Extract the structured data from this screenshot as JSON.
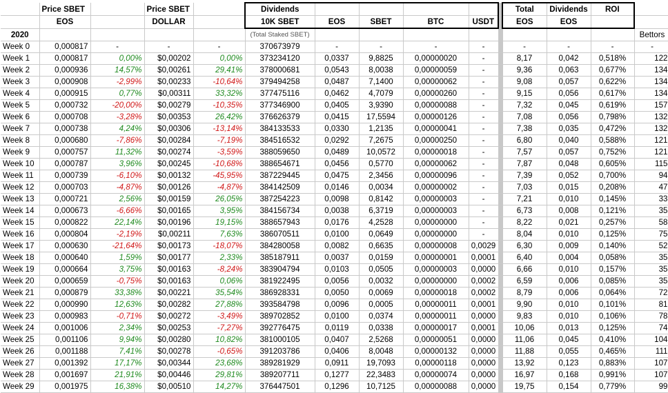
{
  "headers": {
    "price_sbet_eos": "Price SBET",
    "eos": "EOS",
    "price_sbet_dollar": "Price SBET",
    "dollar": "DOLLAR",
    "dividends": "Dividends",
    "tenk_sbet": "10K SBET",
    "total_staked": "(Total Staked SBET)",
    "col_eos": "EOS",
    "col_sbet": "SBET",
    "col_btc": "BTC",
    "col_usdt": "USDT",
    "total": "Total",
    "total_eos": "EOS",
    "dividends2": "Dividends",
    "dividends2_eos": "EOS",
    "roi": "ROI",
    "year": "2020",
    "bettors": "Bettors"
  },
  "rows": [
    {
      "week": "Week 0",
      "price_eos": "0,000817",
      "chg_eos": "-",
      "price_usd": "-",
      "chg_usd": "-",
      "staked": "370673979",
      "div_eos": "-",
      "div_sbet": "-",
      "div_btc": "-",
      "div_usdt": "-",
      "total_eos": "-",
      "div2": "-",
      "roi": "-",
      "bettors": "-"
    },
    {
      "week": "Week 1",
      "price_eos": "0,000817",
      "chg_eos": "0,00%",
      "price_usd": "$0,00202",
      "chg_usd": "0,00%",
      "staked": "373234120",
      "div_eos": "0,0337",
      "div_sbet": "9,8825",
      "div_btc": "0,00000020",
      "div_usdt": "-",
      "total_eos": "8,17",
      "div2": "0,042",
      "roi": "0,518%",
      "bettors": "122"
    },
    {
      "week": "Week 2",
      "price_eos": "0,000936",
      "chg_eos": "14,57%",
      "price_usd": "$0,00261",
      "chg_usd": "29,41%",
      "staked": "378000681",
      "div_eos": "0,0543",
      "div_sbet": "8,0038",
      "div_btc": "0,00000059",
      "div_usdt": "-",
      "total_eos": "9,36",
      "div2": "0,063",
      "roi": "0,677%",
      "bettors": "134"
    },
    {
      "week": "Week 3",
      "price_eos": "0,000908",
      "chg_eos": "-2,99%",
      "price_usd": "$0,00233",
      "chg_usd": "-10,64%",
      "staked": "379494258",
      "div_eos": "0,0487",
      "div_sbet": "7,1400",
      "div_btc": "0,00000062",
      "div_usdt": "-",
      "total_eos": "9,08",
      "div2": "0,057",
      "roi": "0,622%",
      "bettors": "134"
    },
    {
      "week": "Week 4",
      "price_eos": "0,000915",
      "chg_eos": "0,77%",
      "price_usd": "$0,00311",
      "chg_usd": "33,32%",
      "staked": "377475116",
      "div_eos": "0,0462",
      "div_sbet": "4,7079",
      "div_btc": "0,00000260",
      "div_usdt": "-",
      "total_eos": "9,15",
      "div2": "0,056",
      "roi": "0,617%",
      "bettors": "134"
    },
    {
      "week": "Week 5",
      "price_eos": "0,000732",
      "chg_eos": "-20,00%",
      "price_usd": "$0,00279",
      "chg_usd": "-10,35%",
      "staked": "377346900",
      "div_eos": "0,0405",
      "div_sbet": "3,9390",
      "div_btc": "0,00000088",
      "div_usdt": "-",
      "total_eos": "7,32",
      "div2": "0,045",
      "roi": "0,619%",
      "bettors": "157"
    },
    {
      "week": "Week 6",
      "price_eos": "0,000708",
      "chg_eos": "-3,28%",
      "price_usd": "$0,00353",
      "chg_usd": "26,42%",
      "staked": "376626379",
      "div_eos": "0,0415",
      "div_sbet": "17,5594",
      "div_btc": "0,00000126",
      "div_usdt": "-",
      "total_eos": "7,08",
      "div2": "0,056",
      "roi": "0,798%",
      "bettors": "132"
    },
    {
      "week": "Week 7",
      "price_eos": "0,000738",
      "chg_eos": "4,24%",
      "price_usd": "$0,00306",
      "chg_usd": "-13,14%",
      "staked": "384133533",
      "div_eos": "0,0330",
      "div_sbet": "1,2135",
      "div_btc": "0,00000041",
      "div_usdt": "-",
      "total_eos": "7,38",
      "div2": "0,035",
      "roi": "0,472%",
      "bettors": "132"
    },
    {
      "week": "Week 8",
      "price_eos": "0,000680",
      "chg_eos": "-7,86%",
      "price_usd": "$0,00284",
      "chg_usd": "-7,19%",
      "staked": "384516532",
      "div_eos": "0,0292",
      "div_sbet": "7,2675",
      "div_btc": "0,00000250",
      "div_usdt": "-",
      "total_eos": "6,80",
      "div2": "0,040",
      "roi": "0,588%",
      "bettors": "121"
    },
    {
      "week": "Week 9",
      "price_eos": "0,000757",
      "chg_eos": "11,32%",
      "price_usd": "$0,00274",
      "chg_usd": "-3,59%",
      "staked": "388059650",
      "div_eos": "0,0489",
      "div_sbet": "10,0572",
      "div_btc": "0,00000018",
      "div_usdt": "-",
      "total_eos": "7,57",
      "div2": "0,057",
      "roi": "0,752%",
      "bettors": "121"
    },
    {
      "week": "Week 10",
      "price_eos": "0,000787",
      "chg_eos": "3,96%",
      "price_usd": "$0,00245",
      "chg_usd": "-10,68%",
      "staked": "388654671",
      "div_eos": "0,0456",
      "div_sbet": "0,5770",
      "div_btc": "0,00000062",
      "div_usdt": "-",
      "total_eos": "7,87",
      "div2": "0,048",
      "roi": "0,605%",
      "bettors": "115"
    },
    {
      "week": "Week 11",
      "price_eos": "0,000739",
      "chg_eos": "-6,10%",
      "price_usd": "$0,00132",
      "chg_usd": "-45,95%",
      "staked": "387229445",
      "div_eos": "0,0475",
      "div_sbet": "2,3456",
      "div_btc": "0,00000096",
      "div_usdt": "-",
      "total_eos": "7,39",
      "div2": "0,052",
      "roi": "0,700%",
      "bettors": "94"
    },
    {
      "week": "Week 12",
      "price_eos": "0,000703",
      "chg_eos": "-4,87%",
      "price_usd": "$0,00126",
      "chg_usd": "-4,87%",
      "staked": "384142509",
      "div_eos": "0,0146",
      "div_sbet": "0,0034",
      "div_btc": "0,00000002",
      "div_usdt": "-",
      "total_eos": "7,03",
      "div2": "0,015",
      "roi": "0,208%",
      "bettors": "47"
    },
    {
      "week": "Week 13",
      "price_eos": "0,000721",
      "chg_eos": "2,56%",
      "price_usd": "$0,00159",
      "chg_usd": "26,05%",
      "staked": "387254223",
      "div_eos": "0,0098",
      "div_sbet": "0,8142",
      "div_btc": "0,00000003",
      "div_usdt": "-",
      "total_eos": "7,21",
      "div2": "0,010",
      "roi": "0,145%",
      "bettors": "33"
    },
    {
      "week": "Week 14",
      "price_eos": "0,000673",
      "chg_eos": "-6,66%",
      "price_usd": "$0,00165",
      "chg_usd": "3,95%",
      "staked": "384156734",
      "div_eos": "0,0038",
      "div_sbet": "6,3719",
      "div_btc": "0,00000003",
      "div_usdt": "-",
      "total_eos": "6,73",
      "div2": "0,008",
      "roi": "0,121%",
      "bettors": "35"
    },
    {
      "week": "Week 15",
      "price_eos": "0,000822",
      "chg_eos": "22,14%",
      "price_usd": "$0,00196",
      "chg_usd": "19,15%",
      "staked": "388657943",
      "div_eos": "0,0176",
      "div_sbet": "4,2528",
      "div_btc": "0,00000000",
      "div_usdt": "-",
      "total_eos": "8,22",
      "div2": "0,021",
      "roi": "0,257%",
      "bettors": "58"
    },
    {
      "week": "Week 16",
      "price_eos": "0,000804",
      "chg_eos": "-2,19%",
      "price_usd": "$0,00211",
      "chg_usd": "7,63%",
      "staked": "386070511",
      "div_eos": "0,0100",
      "div_sbet": "0,0649",
      "div_btc": "0,00000000",
      "div_usdt": "-",
      "total_eos": "8,04",
      "div2": "0,010",
      "roi": "0,125%",
      "bettors": "75"
    },
    {
      "week": "Week 17",
      "price_eos": "0,000630",
      "chg_eos": "-21,64%",
      "price_usd": "$0,00173",
      "chg_usd": "-18,07%",
      "staked": "384280058",
      "div_eos": "0,0082",
      "div_sbet": "0,6635",
      "div_btc": "0,00000008",
      "div_usdt": "0,0029",
      "total_eos": "6,30",
      "div2": "0,009",
      "roi": "0,140%",
      "bettors": "52"
    },
    {
      "week": "Week 18",
      "price_eos": "0,000640",
      "chg_eos": "1,59%",
      "price_usd": "$0,00177",
      "chg_usd": "2,33%",
      "staked": "385187911",
      "div_eos": "0,0037",
      "div_sbet": "0,0159",
      "div_btc": "0,00000001",
      "div_usdt": "0,0001",
      "total_eos": "6,40",
      "div2": "0,004",
      "roi": "0,058%",
      "bettors": "35"
    },
    {
      "week": "Week 19",
      "price_eos": "0,000664",
      "chg_eos": "3,75%",
      "price_usd": "$0,00163",
      "chg_usd": "-8,24%",
      "staked": "383904794",
      "div_eos": "0,0103",
      "div_sbet": "0,0505",
      "div_btc": "0,00000003",
      "div_usdt": "0,0000",
      "total_eos": "6,66",
      "div2": "0,010",
      "roi": "0,157%",
      "bettors": "35"
    },
    {
      "week": "Week 20",
      "price_eos": "0,000659",
      "chg_eos": "-0,75%",
      "price_usd": "$0,00163",
      "chg_usd": "0,06%",
      "staked": "381922495",
      "div_eos": "0,0056",
      "div_sbet": "0,0032",
      "div_btc": "0,00000000",
      "div_usdt": "0,0002",
      "total_eos": "6,59",
      "div2": "0,006",
      "roi": "0,085%",
      "bettors": "35"
    },
    {
      "week": "Week 21",
      "price_eos": "0,000879",
      "chg_eos": "33,38%",
      "price_usd": "$0,00221",
      "chg_usd": "35,54%",
      "staked": "386928331",
      "div_eos": "0,0050",
      "div_sbet": "0,0069",
      "div_btc": "0,00000018",
      "div_usdt": "0,0002",
      "total_eos": "8,79",
      "div2": "0,006",
      "roi": "0,064%",
      "bettors": "72"
    },
    {
      "week": "Week 22",
      "price_eos": "0,000990",
      "chg_eos": "12,63%",
      "price_usd": "$0,00282",
      "chg_usd": "27,88%",
      "staked": "393584798",
      "div_eos": "0,0096",
      "div_sbet": "0,0005",
      "div_btc": "0,00000011",
      "div_usdt": "0,0001",
      "total_eos": "9,90",
      "div2": "0,010",
      "roi": "0,101%",
      "bettors": "81"
    },
    {
      "week": "Week 23",
      "price_eos": "0,000983",
      "chg_eos": "-0,71%",
      "price_usd": "$0,00272",
      "chg_usd": "-3,49%",
      "staked": "389702852",
      "div_eos": "0,0100",
      "div_sbet": "0,0374",
      "div_btc": "0,00000011",
      "div_usdt": "0,0000",
      "total_eos": "9,83",
      "div2": "0,010",
      "roi": "0,106%",
      "bettors": "78"
    },
    {
      "week": "Week 24",
      "price_eos": "0,001006",
      "chg_eos": "2,34%",
      "price_usd": "$0,00253",
      "chg_usd": "-7,27%",
      "staked": "392776475",
      "div_eos": "0,0119",
      "div_sbet": "0,0338",
      "div_btc": "0,00000017",
      "div_usdt": "0,0001",
      "total_eos": "10,06",
      "div2": "0,013",
      "roi": "0,125%",
      "bettors": "74"
    },
    {
      "week": "Week 25",
      "price_eos": "0,001106",
      "chg_eos": "9,94%",
      "price_usd": "$0,00280",
      "chg_usd": "10,82%",
      "staked": "381000105",
      "div_eos": "0,0407",
      "div_sbet": "2,5268",
      "div_btc": "0,00000051",
      "div_usdt": "0,0000",
      "total_eos": "11,06",
      "div2": "0,045",
      "roi": "0,410%",
      "bettors": "104"
    },
    {
      "week": "Week 26",
      "price_eos": "0,001188",
      "chg_eos": "7,41%",
      "price_usd": "$0,00278",
      "chg_usd": "-0,65%",
      "staked": "391203786",
      "div_eos": "0,0406",
      "div_sbet": "8,0048",
      "div_btc": "0,00000132",
      "div_usdt": "0,0000",
      "total_eos": "11,88",
      "div2": "0,055",
      "roi": "0,465%",
      "bettors": "111"
    },
    {
      "week": "Week 27",
      "price_eos": "0,001392",
      "chg_eos": "17,17%",
      "price_usd": "$0,00344",
      "chg_usd": "23,68%",
      "staked": "389281929",
      "div_eos": "0,0911",
      "div_sbet": "19,7093",
      "div_btc": "0,00000118",
      "div_usdt": "0,0000",
      "total_eos": "13,92",
      "div2": "0,123",
      "roi": "0,883%",
      "bettors": "107"
    },
    {
      "week": "Week 28",
      "price_eos": "0,001697",
      "chg_eos": "21,91%",
      "price_usd": "$0,00446",
      "chg_usd": "29,81%",
      "staked": "389207711",
      "div_eos": "0,1277",
      "div_sbet": "22,3483",
      "div_btc": "0,00000074",
      "div_usdt": "0,0000",
      "total_eos": "16,97",
      "div2": "0,168",
      "roi": "0,991%",
      "bettors": "107"
    },
    {
      "week": "Week 29",
      "price_eos": "0,001975",
      "chg_eos": "16,38%",
      "price_usd": "$0,00510",
      "chg_usd": "14,27%",
      "staked": "376447501",
      "div_eos": "0,1296",
      "div_sbet": "10,7125",
      "div_btc": "0,00000088",
      "div_usdt": "0,0000",
      "total_eos": "19,75",
      "div2": "0,154",
      "roi": "0,779%",
      "bettors": "99"
    }
  ],
  "colors": {
    "positive": "#1f8a1f",
    "negative": "#d01818",
    "separator": "#c8c8c8",
    "gridline": "#c9c9c9"
  }
}
